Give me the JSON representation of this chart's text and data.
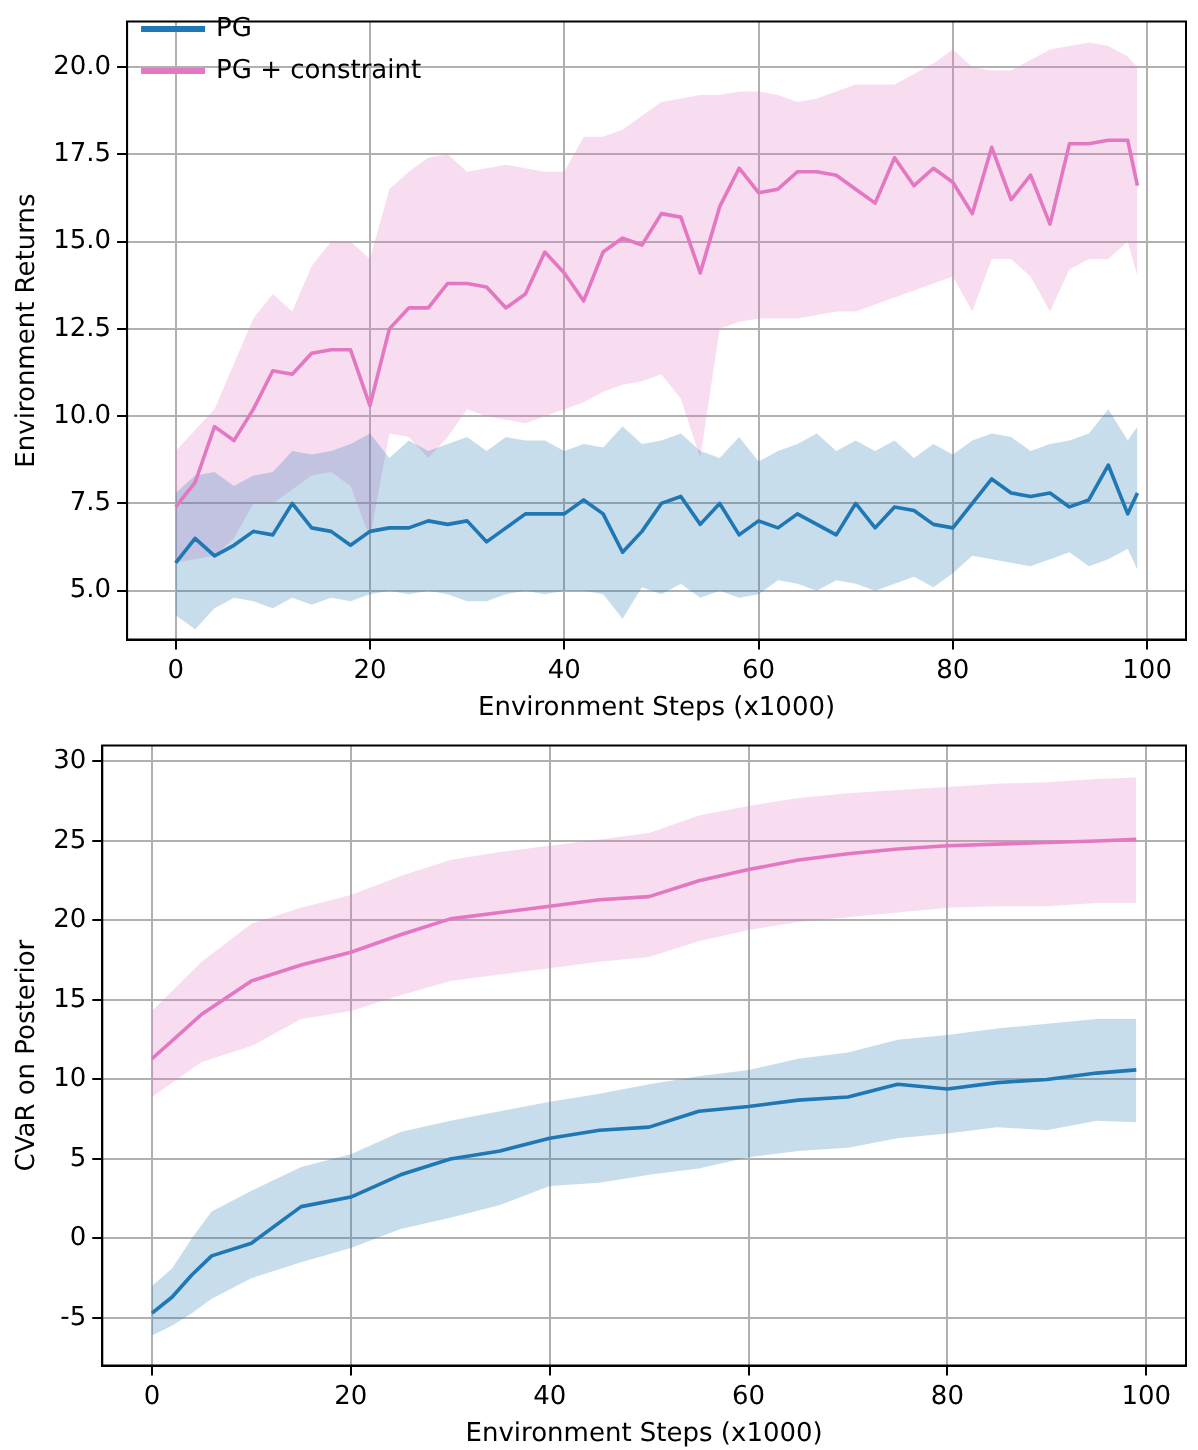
{
  "chart_data": [
    {
      "type": "line",
      "xlabel": "Environment Steps (x1000)",
      "ylabel": "Environment Returns",
      "xlim": [
        -5,
        104
      ],
      "xticks": [
        0,
        20,
        40,
        60,
        80,
        100
      ],
      "ylim": [
        3.6,
        21.3
      ],
      "yticks": [
        {
          "value": 5,
          "label": "5.0"
        },
        {
          "value": 7.5,
          "label": "7.5"
        },
        {
          "value": 10,
          "label": "10.0"
        },
        {
          "value": 12.5,
          "label": "12.5"
        },
        {
          "value": 15,
          "label": "15.0"
        },
        {
          "value": 17.5,
          "label": "17.5"
        },
        {
          "value": 20,
          "label": "20.0"
        }
      ],
      "grid": true,
      "legend": "top left",
      "line_style": "solid",
      "marker": "none",
      "series": [
        {
          "name": "PG",
          "color": "#1f77b4",
          "x": [
            0,
            2,
            4,
            6,
            8,
            10,
            12,
            14,
            16,
            18,
            20,
            22,
            24,
            26,
            28,
            30,
            32,
            34,
            36,
            38,
            40,
            42,
            44,
            46,
            48,
            50,
            52,
            54,
            56,
            58,
            60,
            62,
            64,
            66,
            68,
            70,
            72,
            74,
            76,
            78,
            80,
            82,
            84,
            86,
            88,
            90,
            92,
            94,
            96,
            98,
            99
          ],
          "values": [
            5.8,
            6.5,
            6.0,
            6.3,
            6.7,
            6.6,
            7.5,
            6.8,
            6.7,
            6.3,
            6.7,
            6.8,
            6.8,
            7.0,
            6.9,
            7.0,
            6.4,
            6.8,
            7.2,
            7.2,
            7.2,
            7.6,
            7.2,
            6.1,
            6.7,
            7.5,
            7.7,
            6.9,
            7.5,
            6.6,
            7.0,
            6.8,
            7.2,
            6.9,
            6.6,
            7.5,
            6.8,
            7.4,
            7.3,
            6.9,
            6.8,
            7.5,
            8.2,
            7.8,
            7.7,
            7.8,
            7.4,
            7.6,
            8.6,
            7.2,
            7.8
          ],
          "upper": [
            7.8,
            8.3,
            8.4,
            8.0,
            8.3,
            8.4,
            9.0,
            8.9,
            9.0,
            9.2,
            9.5,
            8.8,
            9.3,
            9.0,
            9.2,
            9.4,
            9.0,
            9.4,
            9.3,
            9.3,
            9.0,
            9.2,
            9.1,
            9.7,
            9.2,
            9.3,
            9.5,
            9.0,
            8.8,
            9.4,
            8.7,
            9.0,
            9.2,
            9.5,
            9.0,
            9.3,
            9.0,
            9.3,
            8.8,
            9.2,
            8.9,
            9.3,
            9.5,
            9.4,
            9.0,
            9.2,
            9.3,
            9.5,
            10.2,
            9.3,
            9.7
          ],
          "lower": [
            4.3,
            3.9,
            4.5,
            4.8,
            4.7,
            4.5,
            4.8,
            4.6,
            4.8,
            4.7,
            4.9,
            5.0,
            4.9,
            5.0,
            4.9,
            4.7,
            4.7,
            4.9,
            5.0,
            4.9,
            5.0,
            5.0,
            4.9,
            4.2,
            5.1,
            4.9,
            5.2,
            4.8,
            5.0,
            4.8,
            4.9,
            5.3,
            5.2,
            5.0,
            5.3,
            5.2,
            5.0,
            5.2,
            5.4,
            5.1,
            5.5,
            6.0,
            5.9,
            5.8,
            5.7,
            5.9,
            6.1,
            5.7,
            5.9,
            6.2,
            5.6
          ]
        },
        {
          "name": "PG + constraint",
          "color": "#e377c2",
          "x": [
            0,
            2,
            4,
            6,
            8,
            10,
            12,
            14,
            16,
            18,
            20,
            22,
            24,
            26,
            28,
            30,
            32,
            34,
            36,
            38,
            40,
            42,
            44,
            46,
            48,
            50,
            52,
            54,
            56,
            58,
            60,
            62,
            64,
            66,
            68,
            70,
            72,
            74,
            76,
            78,
            80,
            82,
            84,
            86,
            88,
            90,
            92,
            94,
            96,
            98,
            99
          ],
          "values": [
            7.4,
            8.1,
            9.7,
            9.3,
            10.2,
            11.3,
            11.2,
            11.8,
            11.9,
            11.9,
            10.3,
            12.5,
            13.1,
            13.1,
            13.8,
            13.8,
            13.7,
            13.1,
            13.5,
            14.7,
            14.1,
            13.3,
            14.7,
            15.1,
            14.9,
            15.8,
            15.7,
            14.1,
            16.0,
            17.1,
            16.4,
            16.5,
            17.0,
            17.0,
            16.9,
            16.5,
            16.1,
            17.4,
            16.6,
            17.1,
            16.7,
            15.8,
            17.7,
            16.2,
            16.9,
            15.5,
            17.8,
            17.8,
            17.9,
            17.9,
            16.6
          ],
          "upper": [
            9.0,
            9.6,
            10.2,
            11.5,
            12.8,
            13.5,
            13.0,
            14.3,
            15.0,
            15.0,
            14.5,
            16.5,
            17.0,
            17.4,
            17.5,
            17.0,
            17.1,
            17.2,
            17.1,
            17.0,
            17.0,
            18.0,
            18.0,
            18.2,
            18.6,
            19.0,
            19.1,
            19.2,
            19.2,
            19.3,
            19.3,
            19.2,
            19.0,
            19.1,
            19.3,
            19.5,
            19.5,
            19.5,
            19.8,
            20.1,
            20.5,
            20.0,
            19.9,
            19.9,
            20.2,
            20.5,
            20.6,
            20.7,
            20.6,
            20.3,
            20.0
          ],
          "lower": [
            5.8,
            5.9,
            6.0,
            6.5,
            7.5,
            7.5,
            7.9,
            8.3,
            8.4,
            8.0,
            6.5,
            9.5,
            9.4,
            8.8,
            9.4,
            10.2,
            10.0,
            9.9,
            9.8,
            10.0,
            10.2,
            10.4,
            10.7,
            10.9,
            11.0,
            11.2,
            10.5,
            8.8,
            12.5,
            12.7,
            12.8,
            12.8,
            12.8,
            12.9,
            13.0,
            13.0,
            13.2,
            13.4,
            13.6,
            13.8,
            14.0,
            13.0,
            14.5,
            14.5,
            14.0,
            13.0,
            14.2,
            14.5,
            14.5,
            15.0,
            14.0
          ]
        }
      ]
    },
    {
      "type": "line",
      "xlabel": "Environment Steps (x1000)",
      "ylabel": "CVaR on Posterior",
      "xlim": [
        -5,
        104
      ],
      "xticks": [
        0,
        20,
        40,
        60,
        80,
        100
      ],
      "ylim": [
        -8,
        31
      ],
      "yticks": [
        -5,
        0,
        5,
        10,
        15,
        20,
        25,
        30
      ],
      "grid": true,
      "line_style": "solid",
      "marker": "none",
      "series": [
        {
          "color": "#1f77b4",
          "x": [
            0,
            2,
            4,
            6,
            10,
            15,
            20,
            25,
            30,
            35,
            40,
            45,
            50,
            55,
            60,
            65,
            70,
            75,
            80,
            85,
            90,
            95,
            99
          ],
          "values": [
            -4.7,
            -3.7,
            -2.3,
            -1.1,
            -0.3,
            2.0,
            2.6,
            4.0,
            5.0,
            5.5,
            6.3,
            6.8,
            7.0,
            8.0,
            8.3,
            8.7,
            8.9,
            9.7,
            9.4,
            9.8,
            10.0,
            10.4,
            10.6
          ],
          "upper": [
            -3.0,
            -1.9,
            0.0,
            1.7,
            3.0,
            4.5,
            5.3,
            6.7,
            7.4,
            8.0,
            8.6,
            9.1,
            9.7,
            10.2,
            10.6,
            11.3,
            11.7,
            12.5,
            12.8,
            13.2,
            13.5,
            13.8,
            13.8
          ],
          "lower": [
            -6.1,
            -5.5,
            -4.7,
            -3.8,
            -2.5,
            -1.5,
            -0.6,
            0.6,
            1.3,
            2.1,
            3.3,
            3.5,
            4.0,
            4.4,
            5.1,
            5.5,
            5.7,
            6.3,
            6.6,
            7.0,
            6.8,
            7.4,
            7.3
          ]
        },
        {
          "color": "#e377c2",
          "x": [
            0,
            5,
            10,
            15,
            20,
            25,
            30,
            35,
            40,
            45,
            50,
            55,
            60,
            65,
            70,
            75,
            80,
            85,
            90,
            95,
            99
          ],
          "values": [
            11.3,
            14.1,
            16.2,
            17.2,
            18.0,
            19.1,
            20.1,
            20.5,
            20.9,
            21.3,
            21.5,
            22.5,
            23.2,
            23.8,
            24.2,
            24.5,
            24.7,
            24.8,
            24.9,
            25.0,
            25.1
          ],
          "upper": [
            14.3,
            17.4,
            19.8,
            20.8,
            21.6,
            22.8,
            23.8,
            24.3,
            24.7,
            25.1,
            25.5,
            26.6,
            27.2,
            27.7,
            28.0,
            28.2,
            28.4,
            28.6,
            28.7,
            28.9,
            29.0
          ],
          "lower": [
            8.9,
            11.1,
            12.1,
            13.8,
            14.3,
            15.3,
            16.2,
            16.6,
            17.0,
            17.4,
            17.7,
            18.7,
            19.4,
            19.9,
            20.2,
            20.5,
            20.8,
            20.9,
            20.9,
            21.1,
            21.1
          ]
        }
      ]
    }
  ]
}
